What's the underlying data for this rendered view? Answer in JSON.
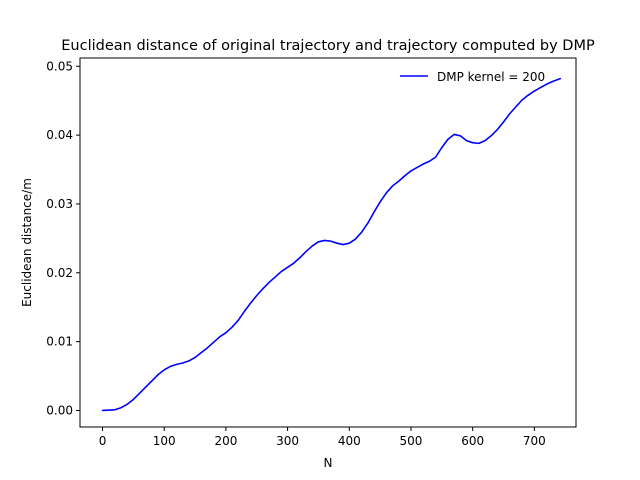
{
  "chart_data": {
    "type": "line",
    "title": "Euclidean distance of original trajectory and trajectory computed by DMP",
    "xlabel": "N",
    "ylabel": "Euclidean distance/m",
    "xlim": [
      -36.5,
      767.5
    ],
    "ylim": [
      -0.0024,
      0.0512
    ],
    "xticks": [
      0,
      100,
      200,
      300,
      400,
      500,
      600,
      700
    ],
    "yticks": [
      0.0,
      0.01,
      0.02,
      0.03,
      0.04,
      0.05
    ],
    "xtick_labels": [
      "0",
      "100",
      "200",
      "300",
      "400",
      "500",
      "600",
      "700"
    ],
    "ytick_labels": [
      "0.00",
      "0.01",
      "0.02",
      "0.03",
      "0.04",
      "0.05"
    ],
    "grid": false,
    "legend_position": "top-right",
    "series": [
      {
        "name": "DMP kernel = 200",
        "color": "#0000ff",
        "x": [
          0,
          20,
          30,
          40,
          50,
          60,
          70,
          80,
          90,
          100,
          110,
          120,
          130,
          140,
          150,
          160,
          170,
          180,
          190,
          200,
          210,
          220,
          230,
          240,
          250,
          260,
          270,
          280,
          290,
          300,
          310,
          320,
          330,
          340,
          350,
          360,
          370,
          380,
          390,
          400,
          410,
          420,
          430,
          440,
          450,
          460,
          470,
          480,
          490,
          500,
          510,
          520,
          530,
          540,
          550,
          560,
          570,
          580,
          590,
          600,
          610,
          620,
          630,
          640,
          650,
          660,
          670,
          680,
          690,
          700,
          710,
          720,
          730,
          742
        ],
        "y": [
          0.0,
          0.0001,
          0.0004,
          0.0009,
          0.0016,
          0.0025,
          0.0034,
          0.0043,
          0.0052,
          0.0059,
          0.0064,
          0.0067,
          0.0069,
          0.0072,
          0.0077,
          0.0084,
          0.0091,
          0.0099,
          0.0107,
          0.0113,
          0.0121,
          0.0131,
          0.0144,
          0.0156,
          0.0167,
          0.0177,
          0.0186,
          0.0194,
          0.0202,
          0.0208,
          0.0214,
          0.0222,
          0.0231,
          0.0239,
          0.0245,
          0.0247,
          0.0246,
          0.0243,
          0.0241,
          0.0243,
          0.0249,
          0.0259,
          0.0272,
          0.0288,
          0.0303,
          0.0316,
          0.0326,
          0.0333,
          0.0341,
          0.0348,
          0.0353,
          0.0358,
          0.0362,
          0.0368,
          0.0382,
          0.0394,
          0.0401,
          0.0399,
          0.0392,
          0.0389,
          0.0388,
          0.0392,
          0.0399,
          0.0408,
          0.0419,
          0.0431,
          0.0441,
          0.0451,
          0.0458,
          0.0464,
          0.0469,
          0.0474,
          0.0478,
          0.0482
        ]
      }
    ]
  }
}
